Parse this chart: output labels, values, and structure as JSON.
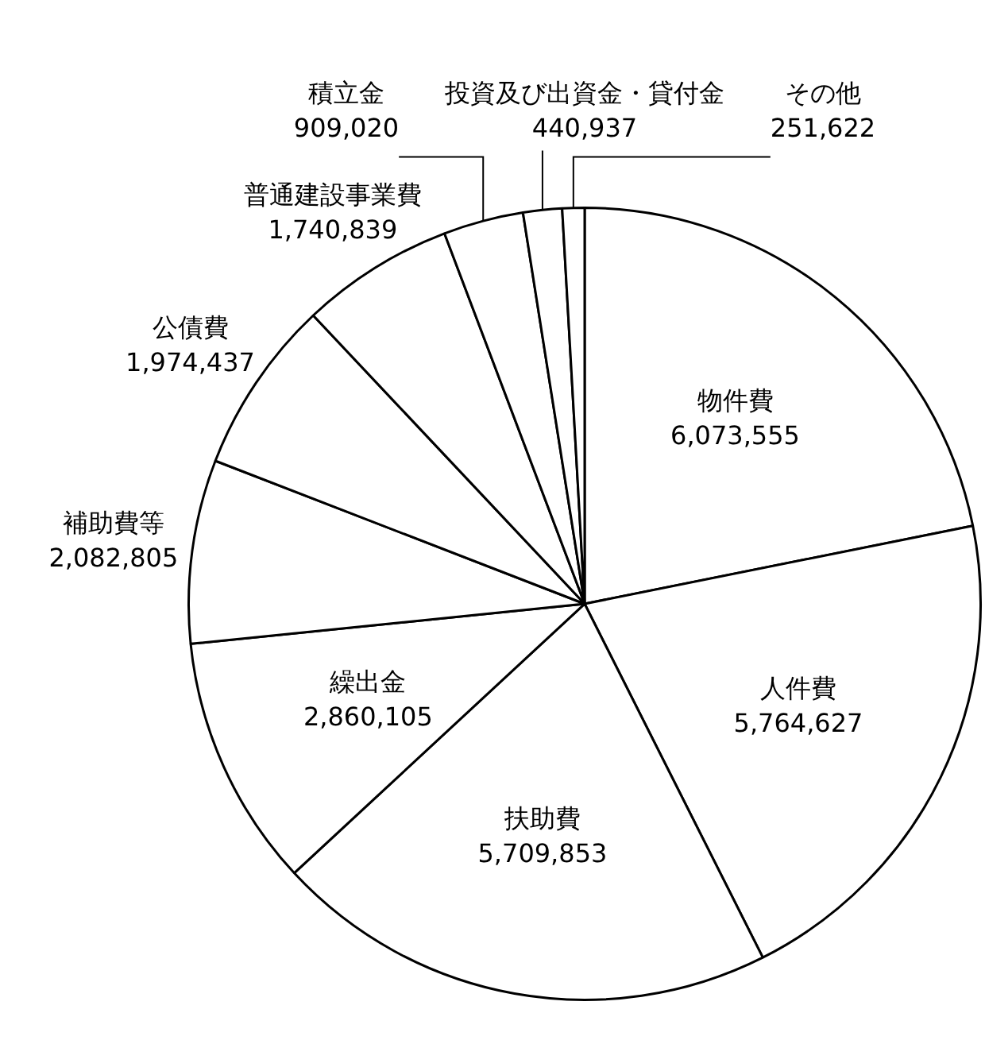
{
  "chart_data": {
    "type": "pie",
    "categories": [
      "物件費",
      "人件費",
      "扶助費",
      "繰出金",
      "補助費等",
      "公債費",
      "普通建設事業費",
      "積立金",
      "投資及び出資金・貸付金",
      "その他"
    ],
    "values": [
      6073555,
      5764627,
      5709853,
      2860105,
      2082805,
      1974437,
      1740839,
      909020,
      440937,
      251622
    ],
    "colors": [
      "#ffffff",
      "#ffffff",
      "#ffffff",
      "#ffffff",
      "#ffffff",
      "#ffffff",
      "#ffffff",
      "#ffffff",
      "#ffffff",
      "#ffffff"
    ],
    "value_labels": [
      "6,073,555",
      "5,764,627",
      "5,709,853",
      "2,860,105",
      "2,082,805",
      "1,974,437",
      "1,740,839",
      "909,020",
      "440,937",
      "251,622"
    ]
  }
}
